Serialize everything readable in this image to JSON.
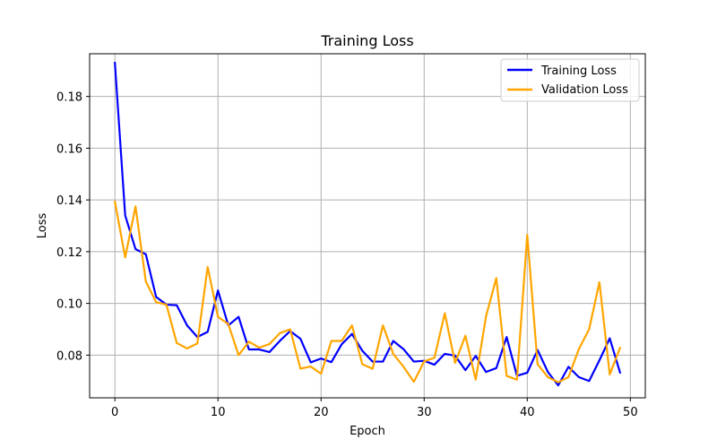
{
  "chart_data": {
    "type": "line",
    "title": "Training Loss",
    "xlabel": "Epoch",
    "ylabel": "Loss",
    "xlim": [
      -2.45,
      51.45
    ],
    "ylim": [
      0.0635,
      0.1965
    ],
    "xticks": [
      0,
      10,
      20,
      30,
      40,
      50
    ],
    "yticks": [
      0.08,
      0.1,
      0.12,
      0.14,
      0.16,
      0.18
    ],
    "ytick_labels": [
      "0.08",
      "0.10",
      "0.12",
      "0.14",
      "0.16",
      "0.18"
    ],
    "grid": true,
    "legend_position": "top-right",
    "x": [
      0,
      1,
      2,
      3,
      4,
      5,
      6,
      7,
      8,
      9,
      10,
      11,
      12,
      13,
      14,
      15,
      16,
      17,
      18,
      19,
      20,
      21,
      22,
      23,
      24,
      25,
      26,
      27,
      28,
      29,
      30,
      31,
      32,
      33,
      34,
      35,
      36,
      37,
      38,
      39,
      40,
      41,
      42,
      43,
      44,
      45,
      46,
      47,
      48,
      49
    ],
    "series": [
      {
        "name": "Training Loss",
        "color": "#0000ff",
        "values": [
          0.193,
          0.134,
          0.121,
          0.119,
          0.1025,
          0.0995,
          0.0993,
          0.0915,
          0.087,
          0.089,
          0.105,
          0.0915,
          0.0948,
          0.0822,
          0.0822,
          0.0812,
          0.0855,
          0.0893,
          0.0863,
          0.0772,
          0.0787,
          0.0773,
          0.0842,
          0.0882,
          0.0817,
          0.0775,
          0.0775,
          0.0855,
          0.0823,
          0.0775,
          0.0778,
          0.0763,
          0.0805,
          0.0798,
          0.0742,
          0.0797,
          0.0735,
          0.075,
          0.087,
          0.072,
          0.0732,
          0.082,
          0.0735,
          0.0683,
          0.0755,
          0.0715,
          0.07,
          0.078,
          0.0865,
          0.0733
        ]
      },
      {
        "name": "Validation Loss",
        "color": "#ffa500",
        "values": [
          0.1393,
          0.1178,
          0.1375,
          0.1085,
          0.1005,
          0.0995,
          0.0847,
          0.0826,
          0.0845,
          0.1141,
          0.0948,
          0.092,
          0.08,
          0.0852,
          0.0829,
          0.0843,
          0.0885,
          0.09,
          0.0748,
          0.0756,
          0.0728,
          0.0855,
          0.0855,
          0.0915,
          0.0765,
          0.0747,
          0.0915,
          0.0805,
          0.0755,
          0.0697,
          0.0776,
          0.079,
          0.0962,
          0.077,
          0.0875,
          0.0705,
          0.095,
          0.1098,
          0.072,
          0.0705,
          0.1265,
          0.0765,
          0.0715,
          0.0695,
          0.0715,
          0.0823,
          0.09,
          0.1082,
          0.0725,
          0.0828
        ]
      }
    ]
  }
}
